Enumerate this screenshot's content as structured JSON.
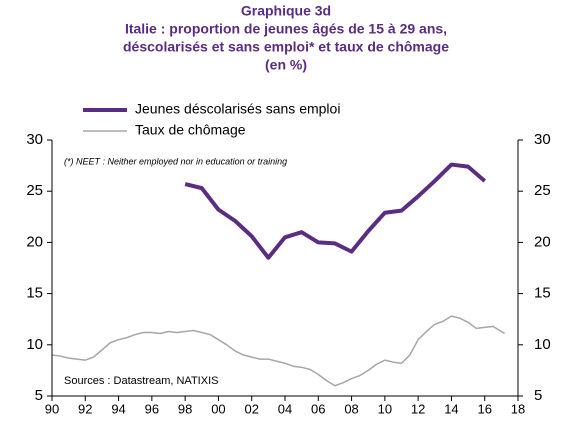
{
  "chart_data": {
    "type": "line",
    "title": [
      "Graphique 3d",
      "Italie : proportion de jeunes âgés de 15 à 29 ans,",
      "déscolarisés et sans emploi* et taux de chômage",
      "(en %)"
    ],
    "note": "(*) NEET : Neither employed nor in education or training",
    "source": "Sources : Datastream, NATIXIS",
    "xlim": [
      1990,
      2018
    ],
    "xticks": [
      {
        "value": 1990,
        "label": "90"
      },
      {
        "value": 1992,
        "label": "92"
      },
      {
        "value": 1994,
        "label": "94"
      },
      {
        "value": 1996,
        "label": "96"
      },
      {
        "value": 1998,
        "label": "98"
      },
      {
        "value": 2000,
        "label": "00"
      },
      {
        "value": 2002,
        "label": "02"
      },
      {
        "value": 2004,
        "label": "04"
      },
      {
        "value": 2006,
        "label": "06"
      },
      {
        "value": 2008,
        "label": "08"
      },
      {
        "value": 2010,
        "label": "10"
      },
      {
        "value": 2012,
        "label": "12"
      },
      {
        "value": 2014,
        "label": "14"
      },
      {
        "value": 2016,
        "label": "16"
      },
      {
        "value": 2018,
        "label": "18"
      }
    ],
    "ylim": [
      5,
      30
    ],
    "yticks": [
      5,
      10,
      15,
      20,
      25,
      30
    ],
    "y2lim": [
      5,
      30
    ],
    "y2ticks": [
      5,
      10,
      15,
      20,
      25,
      30
    ],
    "series": [
      {
        "name": "Jeunes déscolarisés sans emploi",
        "color": "#5b2c83",
        "width": 4,
        "x": [
          1998,
          1999,
          2000,
          2001,
          2002,
          2003,
          2004,
          2005,
          2006,
          2007,
          2008,
          2009,
          2010,
          2011,
          2012,
          2013,
          2014,
          2015,
          2016
        ],
        "values": [
          25.7,
          25.3,
          23.2,
          22.1,
          20.6,
          18.5,
          20.5,
          21.0,
          20.0,
          19.9,
          19.1,
          21.1,
          22.9,
          23.1,
          24.5,
          26.0,
          27.6,
          27.4,
          26.0
        ]
      },
      {
        "name": "Taux de chômage",
        "color": "#a6a6a6",
        "width": 1.5,
        "axis": "y2",
        "x": [
          1990,
          1990.5,
          1991,
          1991.5,
          1992,
          1992.5,
          1993,
          1993.5,
          1994,
          1994.5,
          1995,
          1995.5,
          1996,
          1996.5,
          1997,
          1997.5,
          1998,
          1998.5,
          1999,
          1999.5,
          2000,
          2000.5,
          2001,
          2001.5,
          2002,
          2002.5,
          2003,
          2003.5,
          2004,
          2004.5,
          2005,
          2005.5,
          2006,
          2006.5,
          2007,
          2007.5,
          2008,
          2008.5,
          2009,
          2009.5,
          2010,
          2010.5,
          2011,
          2011.5,
          2012,
          2012.5,
          2013,
          2013.5,
          2014,
          2014.5,
          2015,
          2015.5,
          2016,
          2016.5,
          2017,
          2017.2
        ],
        "values": [
          9.0,
          8.9,
          8.7,
          8.6,
          8.5,
          8.8,
          9.5,
          10.2,
          10.5,
          10.7,
          11.0,
          11.2,
          11.2,
          11.1,
          11.3,
          11.2,
          11.3,
          11.4,
          11.2,
          11.0,
          10.5,
          10.0,
          9.4,
          9.0,
          8.8,
          8.6,
          8.6,
          8.4,
          8.2,
          7.9,
          7.8,
          7.6,
          7.1,
          6.5,
          6.0,
          6.3,
          6.7,
          7.0,
          7.5,
          8.1,
          8.5,
          8.3,
          8.2,
          9.0,
          10.5,
          11.3,
          12.0,
          12.3,
          12.8,
          12.6,
          12.2,
          11.6,
          11.7,
          11.8,
          11.3,
          11.1
        ]
      }
    ]
  }
}
